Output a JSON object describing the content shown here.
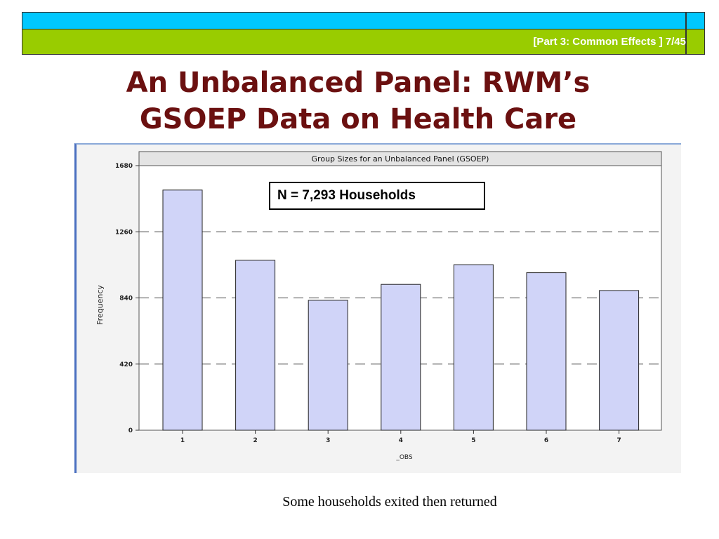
{
  "header": {
    "text": "[Part 3: Common Effects ] 7/45",
    "top_color": "#00c8ff",
    "bottom_color": "#99cc00"
  },
  "slide": {
    "title_line1": "An Unbalanced Panel: RWM’s",
    "title_line2": "GSOEP Data on Health Care",
    "title_color": "#6b1010",
    "annotation": "N = 7,293 Households",
    "caption": "Some households exited then returned"
  },
  "chart_data": {
    "type": "bar",
    "title": "Group Sizes for an Unbalanced Panel (GSOEP)",
    "xlabel": "_OBS",
    "ylabel": "Frequency",
    "categories": [
      "1",
      "2",
      "3",
      "4",
      "5",
      "6",
      "7"
    ],
    "values": [
      1525,
      1079,
      825,
      926,
      1051,
      1000,
      887
    ],
    "ylim": [
      0,
      1680
    ],
    "yticks": [
      0,
      420,
      840,
      1260,
      1680
    ],
    "grid": "horizontal dashed",
    "bar_color": "#d0d4f8"
  }
}
